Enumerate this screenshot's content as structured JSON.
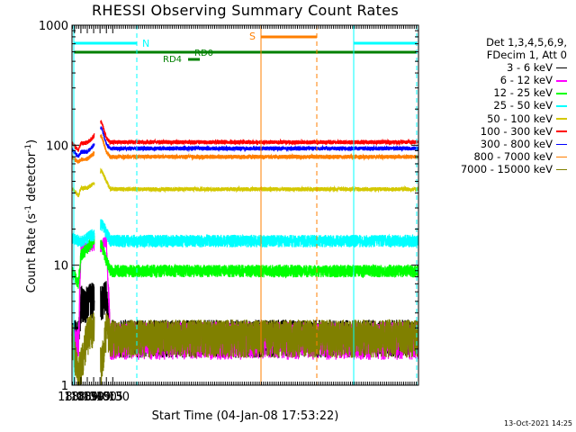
{
  "chart_data": {
    "type": "line",
    "title": "RHESSI Observing Summary Count Rates",
    "xlabel": "Start Time (04-Jan-08 17:53:22)",
    "ylabel_main": "Count Rate (s",
    "ylabel_sup1": "-1",
    "ylabel_mid": " detector",
    "ylabel_sup2": "-1",
    "ylabel_end": ")",
    "yscale": "log",
    "ylim": [
      1,
      1000
    ],
    "xlim_minutes": [
      17.9,
      31.5
    ],
    "x_tick_labels": [
      "18:00",
      "18:15",
      "18:30",
      "18:45",
      "19:00",
      "19:15",
      "19:30"
    ],
    "y_tick_labels": [
      "1",
      "10",
      "100",
      "1000"
    ],
    "legend_header": [
      "Det 1,3,4,5,6,9,",
      "FDecim 1, Att 0"
    ],
    "series": [
      {
        "name": "3 - 6 keV",
        "color": "#000000",
        "x": [
          17.9,
          18.15,
          18.25,
          18.5,
          18.75,
          19.05,
          19.25,
          19.4
        ],
        "y": [
          2.6,
          2.6,
          5,
          5.1,
          5.4,
          5.2,
          5.6,
          2.6
        ]
      },
      {
        "name": "6 - 12 keV",
        "color": "#ff00ff",
        "x": [
          17.9,
          18.15,
          18.25,
          18.5,
          18.75,
          19.05,
          19.25,
          19.4
        ],
        "y": [
          2.2,
          2.2,
          13,
          14,
          15,
          14.5,
          16,
          2.5
        ]
      },
      {
        "name": "12 - 25 keV",
        "color": "#00ff00",
        "x": [
          17.9,
          18.15,
          18.25,
          18.5,
          18.75,
          19.05,
          19.25,
          19.4
        ],
        "y": [
          9,
          7,
          12,
          14,
          16,
          15,
          11,
          9
        ]
      },
      {
        "name": "25 - 50 keV",
        "color": "#00ffff",
        "x": [
          17.9,
          18.15,
          18.25,
          18.5,
          18.75,
          19.05,
          19.25,
          19.4
        ],
        "y": [
          17,
          16,
          16,
          17,
          18,
          22,
          19,
          16
        ]
      },
      {
        "name": "50 - 100 keV",
        "color": "#d4c800",
        "x": [
          17.9,
          18.15,
          18.25,
          18.5,
          18.75,
          19.05,
          19.25,
          19.4
        ],
        "y": [
          44,
          38,
          44,
          44,
          48,
          62,
          50,
          43
        ]
      },
      {
        "name": "100 - 300 keV",
        "color": "#ff0000",
        "x": [
          17.9,
          18.15,
          18.25,
          18.5,
          18.75,
          19.05,
          19.25,
          19.4
        ],
        "y": [
          105,
          90,
          103,
          105,
          118,
          158,
          115,
          106
        ]
      },
      {
        "name": "300 - 800 keV",
        "color": "#0000ff",
        "x": [
          17.9,
          18.15,
          18.25,
          18.5,
          18.75,
          19.05,
          19.25,
          19.4
        ],
        "y": [
          92,
          80,
          88,
          88,
          100,
          142,
          102,
          94
        ]
      },
      {
        "name": "800 - 7000 keV",
        "color": "#ff7f00",
        "x": [
          17.9,
          18.15,
          18.25,
          18.5,
          18.75,
          19.05,
          19.25,
          19.4
        ],
        "y": [
          80,
          72,
          76,
          77,
          85,
          122,
          88,
          80
        ]
      },
      {
        "name": "7000 - 15000 keV",
        "color": "#808000",
        "x": [
          17.9,
          18.15,
          18.25,
          18.5,
          18.75,
          19.05,
          19.25,
          19.4
        ],
        "y": [
          2.6,
          1.3,
          1.5,
          2.7,
          3.0,
          1.5,
          3.0,
          2.6
        ]
      }
    ],
    "flags": [
      {
        "label": "N",
        "color": "#00ffff"
      },
      {
        "label": "S",
        "color": "#ff7f00"
      },
      {
        "label": "RD0",
        "color": "#008000"
      },
      {
        "label": "RD4",
        "color": "#008000"
      }
    ],
    "timestamp": "13-Oct-2021 14:25"
  }
}
